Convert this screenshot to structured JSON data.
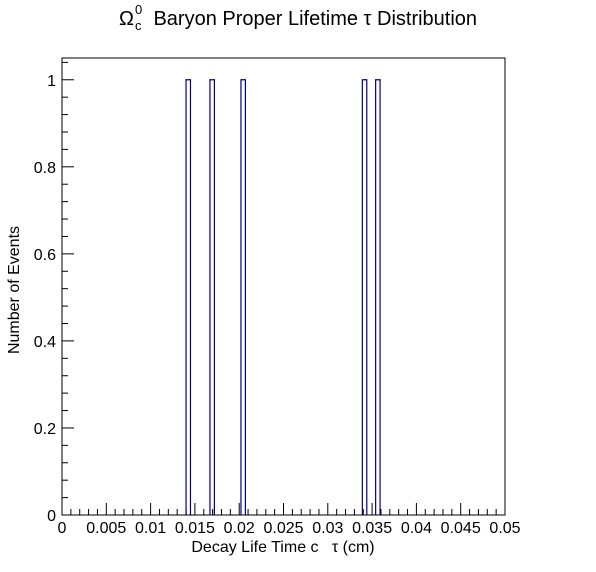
{
  "chart_data": {
    "type": "bar",
    "title": {
      "symbol": "Ω",
      "superscript": "0",
      "subscript": "c",
      "text": "Baryon Proper Lifetime τ Distribution"
    },
    "xlabel": "Decay Life Time c   τ (cm)",
    "ylabel": "Number of Events",
    "xlim": [
      0,
      0.05
    ],
    "ylim": [
      0,
      1.05
    ],
    "x_ticks": [
      0,
      0.005,
      0.01,
      0.015,
      0.02,
      0.025,
      0.03,
      0.035,
      0.04,
      0.045,
      0.05
    ],
    "x_tick_labels": [
      "0",
      "0.005",
      "0.01",
      "0.015",
      "0.02",
      "0.025",
      "0.03",
      "0.035",
      "0.04",
      "0.045",
      "0.05"
    ],
    "y_ticks": [
      0,
      0.2,
      0.4,
      0.6,
      0.8,
      1
    ],
    "y_tick_labels": [
      "0",
      "0.2",
      "0.4",
      "0.6",
      "0.8",
      "1"
    ],
    "bin_width": 0.0005,
    "bins": [
      {
        "x_low": 0.014,
        "x_high": 0.0145,
        "count": 1
      },
      {
        "x_low": 0.0167,
        "x_high": 0.0172,
        "count": 1
      },
      {
        "x_low": 0.0202,
        "x_high": 0.0207,
        "count": 1
      },
      {
        "x_low": 0.0339,
        "x_high": 0.0344,
        "count": 1
      },
      {
        "x_low": 0.0354,
        "x_high": 0.0359,
        "count": 1
      }
    ],
    "grid": false,
    "line_color": "#00008b"
  }
}
